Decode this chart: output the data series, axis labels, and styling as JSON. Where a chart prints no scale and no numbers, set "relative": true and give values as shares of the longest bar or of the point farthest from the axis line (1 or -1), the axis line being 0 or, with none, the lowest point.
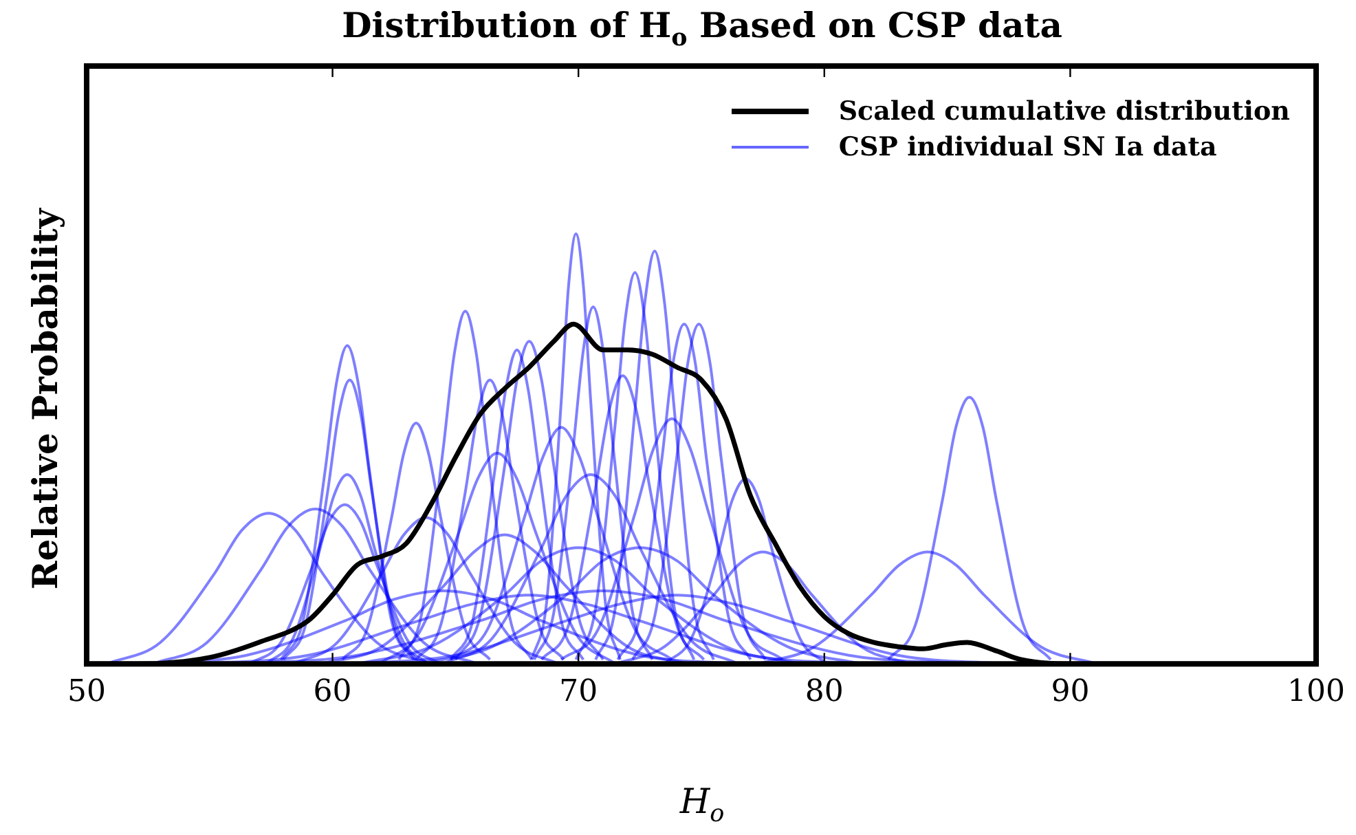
{
  "chart_data": {
    "type": "line",
    "title": "Distribution of H$_{o}$ Based on CSP data",
    "xlabel": "H$_{o}$",
    "ylabel": "Relative Probability",
    "relative": true,
    "xlim": [
      50,
      100
    ],
    "xticks": [
      50,
      60,
      70,
      80,
      90,
      100
    ],
    "legend": "top right",
    "grid": false,
    "marker": "none",
    "line_style": "solid",
    "series": [
      {
        "name": "Scaled cumulative distribution",
        "color": "#000000",
        "x": [
          50,
          52,
          55,
          57,
          59,
          60,
          61,
          62,
          63,
          64,
          65,
          66,
          67,
          68,
          69,
          69.8,
          71,
          72,
          73,
          74,
          75,
          76,
          77,
          78,
          79,
          80,
          81,
          82,
          83,
          84,
          85,
          85.8,
          87,
          88,
          90,
          100
        ],
        "values": [
          0,
          0,
          0.015,
          0.05,
          0.1,
          0.16,
          0.23,
          0.25,
          0.28,
          0.37,
          0.48,
          0.58,
          0.64,
          0.69,
          0.75,
          0.79,
          0.73,
          0.73,
          0.72,
          0.69,
          0.66,
          0.57,
          0.39,
          0.28,
          0.18,
          0.11,
          0.07,
          0.05,
          0.04,
          0.035,
          0.045,
          0.05,
          0.03,
          0.01,
          0,
          0
        ]
      },
      {
        "name": "CSP individual SN Ia data",
        "color": "#0000ff",
        "x": [
          50.8,
          53,
          55.2,
          56.3,
          57.4,
          58.5,
          59.6,
          61.8,
          64
        ],
        "values": [
          0,
          0.05,
          0.21,
          0.31,
          0.35,
          0.31,
          0.21,
          0.05,
          0
        ]
      },
      {
        "color": "#0000ff",
        "x": [
          52.7,
          54.9,
          57.1,
          58.2,
          59.3,
          60.4,
          61.5,
          63.7,
          65.9
        ],
        "values": [
          0,
          0.05,
          0.22,
          0.32,
          0.36,
          0.32,
          0.22,
          0.05,
          0
        ]
      },
      {
        "color": "#0000ff",
        "x": [
          57.9,
          58.8,
          59.7,
          60.15,
          60.6,
          61.05,
          61.5,
          62.4,
          63.3
        ],
        "values": [
          0.01,
          0.1,
          0.45,
          0.65,
          0.74,
          0.65,
          0.45,
          0.1,
          0.01
        ]
      },
      {
        "color": "#0000ff",
        "x": [
          58,
          58.9,
          59.8,
          60.25,
          60.7,
          61.15,
          61.6,
          62.5,
          63.4
        ],
        "values": [
          0.01,
          0.09,
          0.4,
          0.58,
          0.66,
          0.58,
          0.4,
          0.09,
          0.01
        ]
      },
      {
        "color": "#0000ff",
        "x": [
          57.3,
          58.4,
          59.5,
          60.05,
          60.6,
          61.15,
          61.7,
          62.8,
          63.9
        ],
        "values": [
          0,
          0.06,
          0.27,
          0.39,
          0.44,
          0.39,
          0.27,
          0.06,
          0
        ]
      },
      {
        "color": "#0000ff",
        "x": [
          56.6,
          57.9,
          59.2,
          59.85,
          60.5,
          61.15,
          61.8,
          63.1,
          64.4
        ],
        "values": [
          0,
          0.05,
          0.23,
          0.33,
          0.37,
          0.33,
          0.23,
          0.05,
          0
        ]
      },
      {
        "color": "#0000ff",
        "x": [
          60.4,
          61.4,
          62.4,
          62.9,
          63.4,
          63.9,
          64.4,
          65.4,
          66.4
        ],
        "values": [
          0.01,
          0.08,
          0.34,
          0.49,
          0.56,
          0.49,
          0.34,
          0.08,
          0.01
        ]
      },
      {
        "color": "#0000ff",
        "x": [
          58.4,
          60.2,
          62,
          62.9,
          63.8,
          64.7,
          65.6,
          67.4,
          69.2
        ],
        "values": [
          0,
          0.05,
          0.21,
          0.3,
          0.34,
          0.3,
          0.21,
          0.05,
          0
        ]
      },
      {
        "color": "#0000ff",
        "x": [
          62.7,
          63.6,
          64.5,
          64.95,
          65.4,
          65.85,
          66.3,
          67.2,
          68.1
        ],
        "values": [
          0.01,
          0.11,
          0.5,
          0.72,
          0.82,
          0.72,
          0.5,
          0.11,
          0.01
        ]
      },
      {
        "color": "#0000ff",
        "x": [
          63.4,
          64.4,
          65.4,
          65.9,
          66.4,
          66.9,
          67.4,
          68.4,
          69.4
        ],
        "values": [
          0.01,
          0.09,
          0.4,
          0.58,
          0.66,
          0.58,
          0.4,
          0.09,
          0.01
        ]
      },
      {
        "color": "#0000ff",
        "x": [
          64.8,
          65.7,
          66.6,
          67.05,
          67.5,
          67.95,
          68.4,
          69.3,
          70.2
        ],
        "values": [
          0.01,
          0.1,
          0.45,
          0.64,
          0.73,
          0.64,
          0.45,
          0.1,
          0.01
        ]
      },
      {
        "color": "#0000ff",
        "x": [
          61.9,
          63.5,
          65.1,
          65.9,
          66.7,
          67.5,
          68.3,
          69.9,
          71.5
        ],
        "values": [
          0,
          0.07,
          0.3,
          0.43,
          0.49,
          0.43,
          0.3,
          0.07,
          0
        ]
      },
      {
        "color": "#0000ff",
        "x": [
          65,
          66,
          67,
          67.5,
          68,
          68.5,
          69,
          70,
          71
        ],
        "values": [
          0.01,
          0.11,
          0.46,
          0.66,
          0.75,
          0.66,
          0.46,
          0.11,
          0.01
        ]
      },
      {
        "color": "#0000ff",
        "x": [
          68.1,
          68.7,
          69.3,
          69.6,
          69.9,
          70.2,
          70.5,
          71.1,
          71.7
        ],
        "values": [
          0.01,
          0.14,
          0.61,
          0.88,
          1,
          0.88,
          0.61,
          0.14,
          0.01
        ]
      },
      {
        "color": "#0000ff",
        "x": [
          68.2,
          69,
          69.8,
          70.2,
          70.6,
          71,
          71.4,
          72.2,
          73
        ],
        "values": [
          0.01,
          0.12,
          0.51,
          0.73,
          0.83,
          0.73,
          0.51,
          0.12,
          0.01
        ]
      },
      {
        "color": "#0000ff",
        "x": [
          69.9,
          70.7,
          71.5,
          71.9,
          72.3,
          72.7,
          73.1,
          73.9,
          74.7
        ],
        "values": [
          0.01,
          0.13,
          0.56,
          0.8,
          0.91,
          0.8,
          0.56,
          0.13,
          0.01
        ]
      },
      {
        "color": "#0000ff",
        "x": [
          70.7,
          71.5,
          72.3,
          72.7,
          73.1,
          73.5,
          73.9,
          74.7,
          75.5
        ],
        "values": [
          0.01,
          0.13,
          0.59,
          0.84,
          0.96,
          0.84,
          0.59,
          0.13,
          0.01
        ]
      },
      {
        "color": "#0000ff",
        "x": [
          71.6,
          72.5,
          73.4,
          73.85,
          74.3,
          74.75,
          75.2,
          76.1,
          77
        ],
        "values": [
          0.01,
          0.11,
          0.48,
          0.7,
          0.79,
          0.7,
          0.48,
          0.11,
          0.01
        ]
      },
      {
        "color": "#0000ff",
        "x": [
          72.2,
          73.1,
          74,
          74.45,
          74.9,
          75.35,
          75.8,
          76.7,
          77.6
        ],
        "values": [
          0.01,
          0.11,
          0.48,
          0.7,
          0.79,
          0.7,
          0.48,
          0.11,
          0.01
        ]
      },
      {
        "color": "#0000ff",
        "x": [
          68.5,
          69.6,
          70.7,
          71.25,
          71.8,
          72.35,
          72.9,
          74,
          75.1
        ],
        "values": [
          0.01,
          0.09,
          0.41,
          0.59,
          0.67,
          0.59,
          0.41,
          0.09,
          0.01
        ]
      },
      {
        "color": "#0000ff",
        "x": [
          73.5,
          74.6,
          75.7,
          76.25,
          76.8,
          77.35,
          77.9,
          79,
          80.1
        ],
        "values": [
          0,
          0.06,
          0.26,
          0.38,
          0.43,
          0.38,
          0.26,
          0.06,
          0
        ]
      },
      {
        "color": "#0000ff",
        "x": [
          71.5,
          73.5,
          75.5,
          76.5,
          77.5,
          78.5,
          79.5,
          81.5,
          83.5
        ],
        "values": [
          0,
          0.04,
          0.16,
          0.23,
          0.26,
          0.23,
          0.16,
          0.04,
          0
        ]
      },
      {
        "color": "#0000ff",
        "x": [
          77.3,
          79.6,
          81.9,
          83.05,
          84.2,
          85.35,
          86.5,
          88.8,
          91.1
        ],
        "values": [
          0,
          0.04,
          0.16,
          0.23,
          0.26,
          0.23,
          0.16,
          0.04,
          0
        ]
      },
      {
        "color": "#0000ff",
        "x": [
          82.6,
          83.7,
          84.8,
          85.35,
          85.9,
          86.45,
          87,
          88.1,
          89.2
        ],
        "values": [
          0.01,
          0.09,
          0.38,
          0.55,
          0.62,
          0.55,
          0.38,
          0.09,
          0.01
        ]
      },
      {
        "color": "#0000ff",
        "x": [
          52.5,
          56.5,
          60.5,
          62.5,
          64.5,
          66.5,
          68.5,
          72.5,
          76.5
        ],
        "values": [
          0,
          0.02,
          0.1,
          0.15,
          0.17,
          0.15,
          0.1,
          0.02,
          0
        ]
      },
      {
        "color": "#0000ff",
        "x": [
          54.5,
          59,
          63.5,
          65.75,
          68,
          70.25,
          72.5,
          77,
          81.5
        ],
        "values": [
          0,
          0.02,
          0.1,
          0.14,
          0.16,
          0.14,
          0.1,
          0.02,
          0
        ]
      },
      {
        "color": "#0000ff",
        "x": [
          56,
          61,
          66,
          68.5,
          71,
          73.5,
          76,
          81,
          86
        ],
        "values": [
          0,
          0.02,
          0.1,
          0.15,
          0.17,
          0.15,
          0.1,
          0.02,
          0
        ]
      },
      {
        "color": "#0000ff",
        "x": [
          60.5,
          65,
          69.5,
          71.75,
          74,
          76.25,
          78.5,
          83,
          87.5
        ],
        "values": [
          0,
          0.02,
          0.1,
          0.14,
          0.16,
          0.14,
          0.1,
          0.02,
          0
        ]
      },
      {
        "color": "#0000ff",
        "x": [
          61,
          64,
          67,
          68.5,
          70,
          71.5,
          73,
          76,
          79
        ],
        "values": [
          0,
          0.04,
          0.16,
          0.24,
          0.27,
          0.24,
          0.16,
          0.04,
          0
        ]
      },
      {
        "color": "#0000ff",
        "x": [
          63.5,
          66.5,
          69.5,
          71,
          72.5,
          74,
          75.5,
          78.5,
          81.5
        ],
        "values": [
          0,
          0.04,
          0.16,
          0.24,
          0.27,
          0.24,
          0.16,
          0.04,
          0
        ]
      },
      {
        "color": "#0000ff",
        "x": [
          59.5,
          62,
          64.5,
          65.75,
          67,
          68.25,
          69.5,
          72,
          74.5
        ],
        "values": [
          0,
          0.04,
          0.18,
          0.26,
          0.3,
          0.26,
          0.18,
          0.04,
          0
        ]
      },
      {
        "color": "#0000ff",
        "x": [
          64.5,
          66.5,
          68.5,
          69.5,
          70.5,
          71.5,
          72.5,
          74.5,
          76.5
        ],
        "values": [
          0,
          0.06,
          0.27,
          0.39,
          0.44,
          0.39,
          0.27,
          0.06,
          0
        ]
      },
      {
        "color": "#0000ff",
        "x": [
          69.3,
          70.8,
          72.3,
          73.05,
          73.8,
          74.55,
          75.3,
          76.8,
          78.3
        ],
        "values": [
          0.01,
          0.08,
          0.35,
          0.5,
          0.57,
          0.5,
          0.35,
          0.08,
          0.01
        ]
      },
      {
        "color": "#0000ff",
        "x": [
          64.8,
          66.3,
          67.8,
          68.55,
          69.3,
          70.05,
          70.8,
          72.3,
          73.8
        ],
        "values": [
          0.01,
          0.08,
          0.34,
          0.48,
          0.55,
          0.48,
          0.34,
          0.08,
          0.01
        ]
      }
    ]
  }
}
